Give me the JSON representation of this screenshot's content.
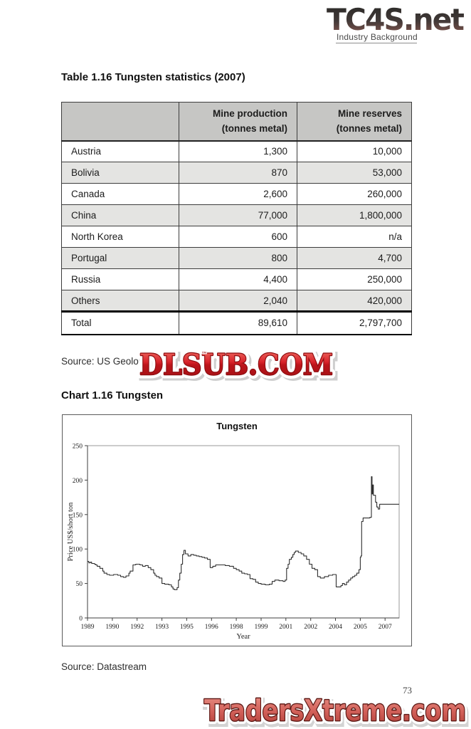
{
  "header": {
    "logo": "TC4S.net",
    "subtitle": "Industry Background"
  },
  "table_section": {
    "title": "Table 1.16 Tungsten statistics (2007)",
    "columns": [
      {
        "line1": "",
        "line2": ""
      },
      {
        "line1": "Mine production",
        "line2": "(tonnes metal)"
      },
      {
        "line1": "Mine reserves",
        "line2": "(tonnes metal)"
      }
    ],
    "rows": [
      {
        "country": "Austria",
        "production": "1,300",
        "reserves": "10,000"
      },
      {
        "country": "Bolivia",
        "production": "870",
        "reserves": "53,000"
      },
      {
        "country": "Canada",
        "production": "2,600",
        "reserves": "260,000"
      },
      {
        "country": "China",
        "production": "77,000",
        "reserves": "1,800,000"
      },
      {
        "country": "North Korea",
        "production": "600",
        "reserves": "n/a"
      },
      {
        "country": "Portugal",
        "production": "800",
        "reserves": "4,700"
      },
      {
        "country": "Russia",
        "production": "4,400",
        "reserves": "250,000"
      },
      {
        "country": "Others",
        "production": "2,040",
        "reserves": "420,000"
      }
    ],
    "total": {
      "country": "Total",
      "production": "89,610",
      "reserves": "2,797,700"
    },
    "source": "Source: US Geolo"
  },
  "chart_section": {
    "title": "Chart 1.16 Tungsten",
    "source": "Source: Datastream"
  },
  "chart_data": {
    "type": "line",
    "title": "Tungsten",
    "xlabel": "Year",
    "ylabel": "Price US$/short ton",
    "ylim": [
      0,
      250
    ],
    "yticks": [
      0,
      50,
      100,
      150,
      200,
      250
    ],
    "xtick_labels": [
      "1989",
      "1990",
      "1992",
      "1993",
      "1995",
      "1996",
      "1998",
      "1999",
      "2001",
      "2002",
      "2004",
      "2005",
      "2007"
    ],
    "xtick_interval_years": 1.5,
    "x_range": [
      1989.0,
      2007.85
    ],
    "grid": false,
    "legend": "none",
    "line_color": "#2e2e2e",
    "step": true,
    "series": [
      {
        "name": "Tungsten price (US$/short ton)",
        "points": [
          [
            1989.0,
            82
          ],
          [
            1989.08,
            80
          ],
          [
            1989.17,
            81
          ],
          [
            1989.25,
            79
          ],
          [
            1989.42,
            78
          ],
          [
            1989.5,
            77
          ],
          [
            1989.58,
            75
          ],
          [
            1989.75,
            72
          ],
          [
            1989.92,
            68
          ],
          [
            1990.0,
            65
          ],
          [
            1990.17,
            63
          ],
          [
            1990.33,
            62
          ],
          [
            1990.58,
            63
          ],
          [
            1990.83,
            62
          ],
          [
            1991.0,
            60
          ],
          [
            1991.17,
            59
          ],
          [
            1991.33,
            61
          ],
          [
            1991.5,
            65
          ],
          [
            1991.58,
            68
          ],
          [
            1991.75,
            77
          ],
          [
            1991.92,
            78
          ],
          [
            1992.17,
            77
          ],
          [
            1992.33,
            75
          ],
          [
            1992.5,
            76
          ],
          [
            1992.67,
            73
          ],
          [
            1992.83,
            70
          ],
          [
            1993.0,
            65
          ],
          [
            1993.08,
            62
          ],
          [
            1993.17,
            60
          ],
          [
            1993.33,
            58
          ],
          [
            1993.5,
            50
          ],
          [
            1993.67,
            49
          ],
          [
            1993.92,
            48
          ],
          [
            1994.08,
            45
          ],
          [
            1994.17,
            42
          ],
          [
            1994.25,
            41
          ],
          [
            1994.42,
            44
          ],
          [
            1994.5,
            55
          ],
          [
            1994.58,
            65
          ],
          [
            1994.67,
            78
          ],
          [
            1994.75,
            92
          ],
          [
            1994.83,
            98
          ],
          [
            1994.92,
            93
          ],
          [
            1995.08,
            90
          ],
          [
            1995.25,
            92
          ],
          [
            1995.42,
            91
          ],
          [
            1995.58,
            90
          ],
          [
            1995.75,
            89
          ],
          [
            1995.92,
            88
          ],
          [
            1996.08,
            87
          ],
          [
            1996.25,
            85
          ],
          [
            1996.42,
            73
          ],
          [
            1996.58,
            75
          ],
          [
            1996.75,
            77
          ],
          [
            1997.0,
            77
          ],
          [
            1997.33,
            76
          ],
          [
            1997.58,
            75
          ],
          [
            1997.83,
            72
          ],
          [
            1998.0,
            70
          ],
          [
            1998.17,
            68
          ],
          [
            1998.33,
            65
          ],
          [
            1998.5,
            64
          ],
          [
            1998.67,
            63
          ],
          [
            1998.83,
            57
          ],
          [
            1999.0,
            56
          ],
          [
            1999.17,
            52
          ],
          [
            1999.33,
            50
          ],
          [
            1999.5,
            49
          ],
          [
            1999.75,
            48
          ],
          [
            2000.0,
            49
          ],
          [
            2000.17,
            53
          ],
          [
            2000.33,
            55
          ],
          [
            2000.58,
            54
          ],
          [
            2000.83,
            53
          ],
          [
            2000.95,
            55
          ],
          [
            2001.04,
            72
          ],
          [
            2001.13,
            78
          ],
          [
            2001.21,
            85
          ],
          [
            2001.33,
            88
          ],
          [
            2001.42,
            92
          ],
          [
            2001.5,
            95
          ],
          [
            2001.58,
            97
          ],
          [
            2001.75,
            95
          ],
          [
            2001.92,
            93
          ],
          [
            2002.08,
            90
          ],
          [
            2002.25,
            85
          ],
          [
            2002.42,
            78
          ],
          [
            2002.58,
            72
          ],
          [
            2002.75,
            70
          ],
          [
            2002.92,
            60
          ],
          [
            2003.08,
            58
          ],
          [
            2003.33,
            60
          ],
          [
            2003.58,
            62
          ],
          [
            2003.83,
            63
          ],
          [
            2004.04,
            45
          ],
          [
            2004.21,
            45
          ],
          [
            2004.33,
            47
          ],
          [
            2004.42,
            50
          ],
          [
            2004.54,
            48
          ],
          [
            2004.67,
            52
          ],
          [
            2004.79,
            55
          ],
          [
            2004.92,
            58
          ],
          [
            2005.04,
            60
          ],
          [
            2005.17,
            62
          ],
          [
            2005.29,
            65
          ],
          [
            2005.42,
            70
          ],
          [
            2005.5,
            88
          ],
          [
            2005.54,
            90
          ],
          [
            2005.58,
            140
          ],
          [
            2005.67,
            145
          ],
          [
            2005.92,
            145
          ],
          [
            2006.08,
            146
          ],
          [
            2006.17,
            205
          ],
          [
            2006.21,
            180
          ],
          [
            2006.25,
            193
          ],
          [
            2006.29,
            178
          ],
          [
            2006.42,
            168
          ],
          [
            2006.5,
            161
          ],
          [
            2006.58,
            158
          ],
          [
            2006.67,
            165
          ],
          [
            2007.0,
            165
          ],
          [
            2007.5,
            165
          ],
          [
            2007.85,
            165
          ]
        ]
      }
    ]
  },
  "watermarks": {
    "dlsub": {
      "text": "DLSUB.COM",
      "tm": "™",
      "color_top": "#f2756a",
      "color_bottom": "#a00f13"
    },
    "traders": {
      "text": "TradersXtreme.com",
      "fill_top": "#e89288",
      "fill_bottom": "#b03b35",
      "outline": "#5a1713"
    }
  },
  "page_number": "73"
}
